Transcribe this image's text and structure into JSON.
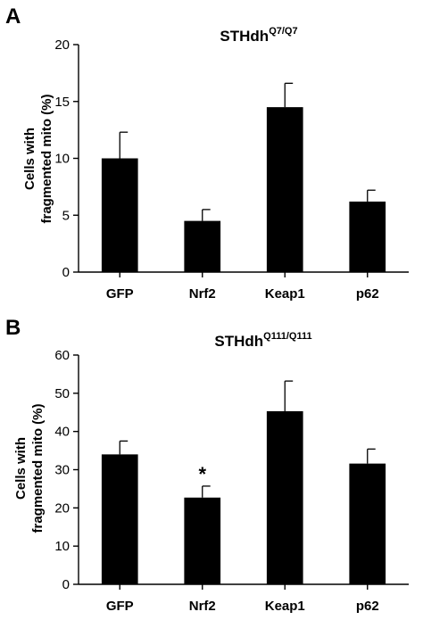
{
  "chart_data": [
    {
      "panel": "A",
      "type": "bar",
      "title": "STHdh",
      "title_superscript": "Q7/Q7",
      "ylabel_line1": "Cells with",
      "ylabel_line2": "fragmented mito (%)",
      "xlabel": "",
      "categories": [
        "GFP",
        "Nrf2",
        "Keap1",
        "p62"
      ],
      "values": [
        10.0,
        4.5,
        14.5,
        6.2
      ],
      "errors": [
        2.3,
        1.0,
        2.1,
        1.0
      ],
      "ylim": [
        0,
        20
      ],
      "yticks": [
        0,
        5,
        10,
        15,
        20
      ],
      "annotations": [],
      "bar_color": "#000000",
      "grid": false
    },
    {
      "panel": "B",
      "type": "bar",
      "title": "STHdh",
      "title_superscript": "Q111/Q111",
      "ylabel_line1": "Cells with",
      "ylabel_line2": "fragmented mito (%)",
      "xlabel": "",
      "categories": [
        "GFP",
        "Nrf2",
        "Keap1",
        "p62"
      ],
      "values": [
        34.0,
        22.7,
        45.3,
        31.6
      ],
      "errors": [
        3.5,
        3.0,
        7.9,
        3.8
      ],
      "ylim": [
        0,
        60
      ],
      "yticks": [
        0,
        10,
        20,
        30,
        40,
        50,
        60
      ],
      "annotations": [
        {
          "category": "Nrf2",
          "text": "*"
        }
      ],
      "bar_color": "#000000",
      "grid": false
    }
  ]
}
